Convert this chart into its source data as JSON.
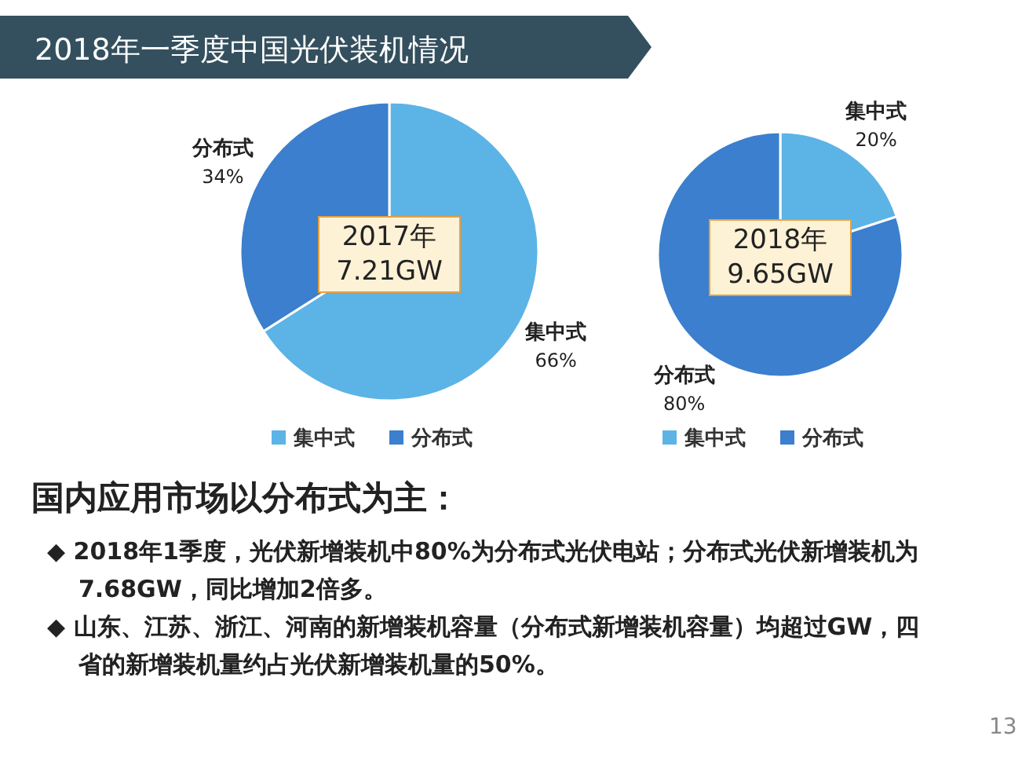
{
  "chart_data": [
    {
      "type": "other",
      "title": "2018年一季度中国光伏装机情况"
    },
    {
      "type": "pie",
      "categories": [
        "集中式",
        "分布式"
      ],
      "values": [
        66,
        34
      ],
      "value_labels": [
        "66%",
        "34%"
      ],
      "colors": [
        "#5cb3e6",
        "#3b7fce"
      ],
      "legend": "bottom",
      "annotations": [
        "2017年 7.21GW"
      ]
    },
    {
      "type": "pie",
      "categories": [
        "集中式",
        "分布式"
      ],
      "values": [
        20,
        80
      ],
      "value_labels": [
        "20%",
        "80%"
      ],
      "colors": [
        "#5cb3e6",
        "#3b7fce"
      ],
      "legend": "bottom",
      "annotations": [
        "2018年 9.65GW"
      ]
    },
    {
      "type": "other",
      "title": "国内应用市场以分布式为主：",
      "annotations": [
        "◆ 2018年1季度，光伏新增装机中80%为分布式光伏电站；分布式光伏新增装机为7.68GW，同比增加2倍多。",
        "◆ 山东、江苏、浙江、河南的新增装机容量（分布式新增装机容量）均超过GW，四省的新增装机量约占光伏新增装机量的50%。",
        "13"
      ]
    }
  ]
}
